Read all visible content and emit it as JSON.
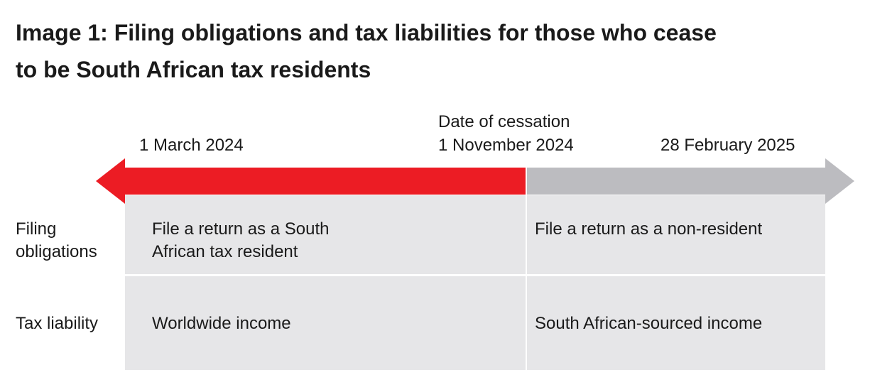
{
  "title": "Image 1: Filing obligations and tax liabilities for those who cease to be South African tax residents",
  "timeline": {
    "start_date": "1 March 2024",
    "cessation_label": "Date of cessation",
    "cessation_date": "1 November 2024",
    "end_date": "28 February 2025",
    "resident_color": "#ec1c24",
    "nonresident_color": "#bcbcc0"
  },
  "rows": [
    {
      "label": "Filing obligations",
      "resident": "File a return as a South African tax resident",
      "non_resident": "File a return as a non-resident"
    },
    {
      "label": "Tax liability",
      "resident": "Worldwide income",
      "non_resident": "South African-sourced income"
    }
  ],
  "cell_color": "#e6e6e8"
}
